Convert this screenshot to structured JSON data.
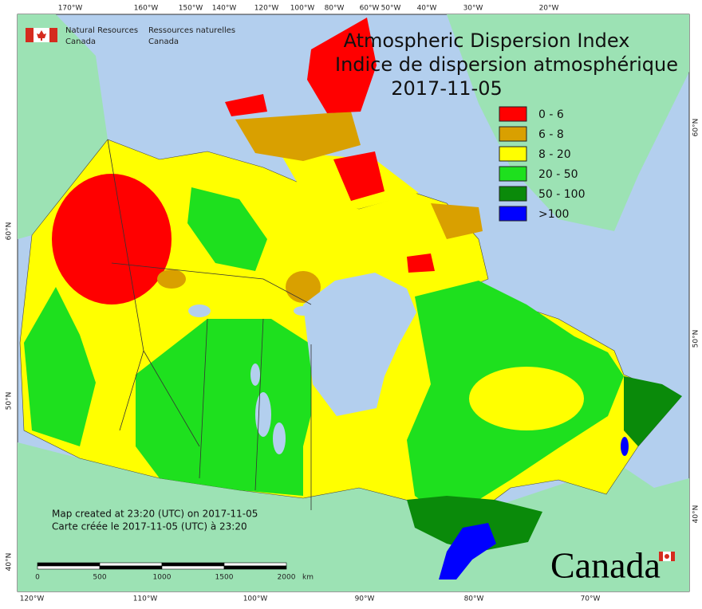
{
  "header": {
    "agency_en": [
      "Natural Resources",
      "Canada"
    ],
    "agency_fr": [
      "Ressources naturelles",
      "Canada"
    ]
  },
  "title": {
    "line1": "Atmospheric Dispersion Index",
    "line2": "Indice de dispersion atmosphérique",
    "date": "2017-11-05"
  },
  "legend": [
    {
      "label": "0 - 6",
      "color": "#ff0000"
    },
    {
      "label": "6 - 8",
      "color": "#d9a000"
    },
    {
      "label": "8 - 20",
      "color": "#ffff00"
    },
    {
      "label": "20 - 50",
      "color": "#1ee01e"
    },
    {
      "label": "50 - 100",
      "color": "#0a8a0a"
    },
    {
      "label": ">100",
      "color": "#0000ff"
    }
  ],
  "top_longitudes": [
    "170°W",
    "160°W",
    "150°W",
    "140°W",
    "120°W",
    "100°W",
    "80°W",
    "60°W",
    "50°W",
    "40°W",
    "30°W",
    "20°W"
  ],
  "bottom_longitudes": [
    "120°W",
    "110°W",
    "100°W",
    "90°W",
    "80°W",
    "70°W"
  ],
  "left_latitudes": [
    "60°N",
    "50°N",
    "40°N"
  ],
  "right_latitudes": [
    "60°N",
    "50°N",
    "40°N"
  ],
  "credits": [
    "Map created at 23:20 (UTC) on 2017-11-05",
    "Carte créée le 2017-11-05 (UTC) à 23:20"
  ],
  "scale_bar": [
    "0",
    "500",
    "1000",
    "1500",
    "2000",
    "km"
  ],
  "wordmark": "Canada"
}
